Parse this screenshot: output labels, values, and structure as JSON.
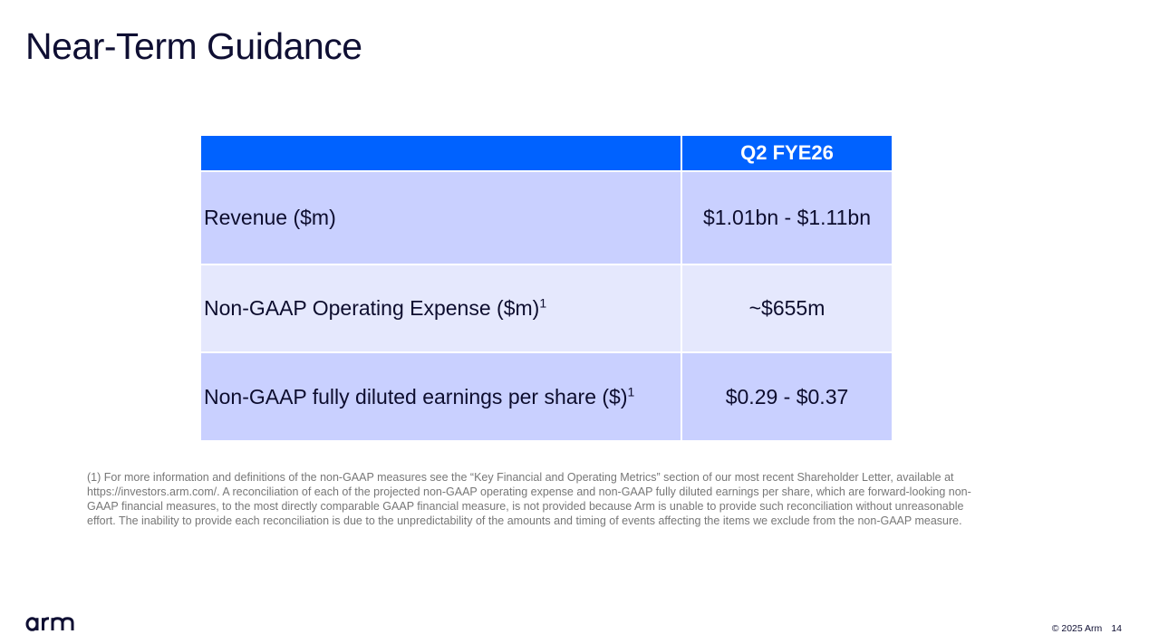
{
  "slide": {
    "title": "Near-Term Guidance"
  },
  "table": {
    "header": {
      "col1": "",
      "col2": "Q2 FYE26"
    },
    "rows": [
      {
        "label": "Revenue ($m)",
        "sup": "",
        "value": "$1.01bn - $1.11bn"
      },
      {
        "label": "Non-GAAP Operating Expense ($m)",
        "sup": "1",
        "value": "~$655m"
      },
      {
        "label": "Non-GAAP fully diluted earnings per share ($)",
        "sup": "1",
        "value": "$0.29 - $0.37"
      }
    ]
  },
  "footnote": "(1) For more information and definitions of the non-GAAP measures see the “Key Financial and Operating Metrics” section of our most recent Shareholder Letter, available at https://investors.arm.com/. A reconciliation of each of the projected non-GAAP operating expense and non-GAAP fully diluted earnings per share, which are forward-looking non-GAAP financial measures, to the most directly comparable GAAP financial measure, is not provided because Arm is unable to provide such reconciliation without unreasonable effort. The inability to provide each reconciliation is due to the unpredictability of the amounts and timing of events affecting the items we exclude from the non-GAAP measure.",
  "footer": {
    "logo_text": "arm",
    "copyright": "© 2025 Arm",
    "page_number": "14"
  },
  "colors": {
    "header_bg": "#0062ff",
    "row_dark": "#c9d0ff",
    "row_light": "#e5e8fd",
    "logo": "#0f0f33"
  }
}
